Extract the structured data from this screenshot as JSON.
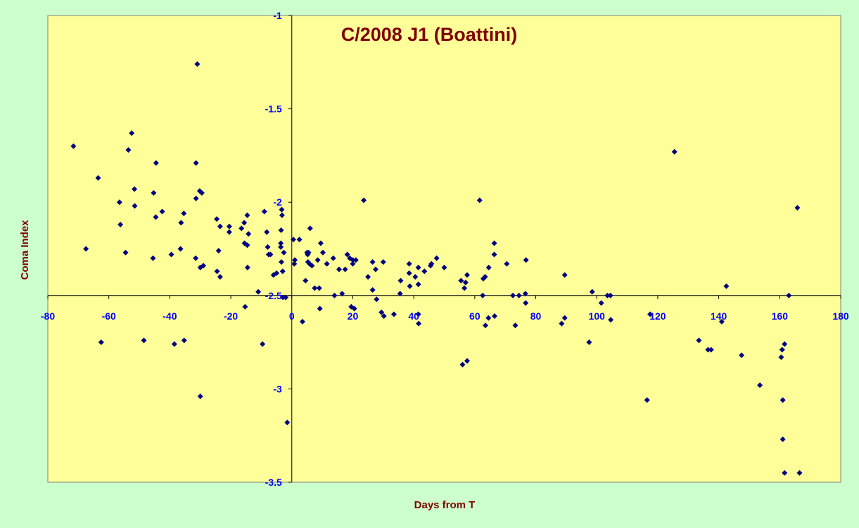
{
  "chart_data": {
    "type": "scatter",
    "title": "C/2008 J1 (Boattini)",
    "xlabel": "Days from T",
    "ylabel": "Coma Index",
    "xlim": [
      -80,
      180
    ],
    "ylim": [
      -3.5,
      -1
    ],
    "y_reversed": false,
    "grid": false,
    "legend": "none",
    "x_ticks": [
      -80,
      -60,
      -40,
      -20,
      0,
      20,
      40,
      60,
      80,
      100,
      120,
      140,
      160,
      180
    ],
    "y_ticks": [
      -1,
      -1.5,
      -2,
      -2.5,
      -3,
      -3.5
    ],
    "x_tick_labels": [
      "-80",
      "-60",
      "-40",
      "-20",
      "0",
      "20",
      "40",
      "60",
      "80",
      "100",
      "120",
      "140",
      "160",
      "180"
    ],
    "y_tick_labels": [
      "-1",
      "-1.5",
      "-2",
      "-2.5",
      "-3",
      "-3.5"
    ],
    "colors": {
      "background": "#ccffcc",
      "plot_area": "#ffff99",
      "marker": "#000080",
      "tick_labels": "#0000ff",
      "titles": "#800000"
    },
    "series": [
      {
        "marker": "diamond",
        "points": [
          [
            -71.6,
            -1.7
          ],
          [
            -67.5,
            -2.25
          ],
          [
            -63.5,
            -1.87
          ],
          [
            -62.5,
            -2.75
          ],
          [
            -56.5,
            -2.0
          ],
          [
            -56.2,
            -2.12
          ],
          [
            -54.5,
            -2.27
          ],
          [
            -53.6,
            -1.72
          ],
          [
            -52.5,
            -1.63
          ],
          [
            -51.6,
            -1.93
          ],
          [
            -51.5,
            -2.02
          ],
          [
            -48.5,
            -2.74
          ],
          [
            -45.5,
            -2.3
          ],
          [
            -45.3,
            -1.95
          ],
          [
            -44.6,
            -2.08
          ],
          [
            -44.5,
            -1.79
          ],
          [
            -42.5,
            -2.05
          ],
          [
            -39.5,
            -2.28
          ],
          [
            -38.5,
            -2.76
          ],
          [
            -36.5,
            -2.25
          ],
          [
            -36.3,
            -2.11
          ],
          [
            -35.4,
            -2.06
          ],
          [
            -35.3,
            -2.74
          ],
          [
            -31.5,
            -2.3
          ],
          [
            -31.4,
            -1.98
          ],
          [
            -31.4,
            -1.79
          ],
          [
            -31.0,
            -1.26
          ],
          [
            -30.2,
            -1.94
          ],
          [
            -30.0,
            -2.35
          ],
          [
            -30.0,
            -3.04
          ],
          [
            -29.5,
            -1.95
          ],
          [
            -29.0,
            -2.34
          ],
          [
            -24.6,
            -2.09
          ],
          [
            -24.5,
            -2.37
          ],
          [
            -24.0,
            -2.26
          ],
          [
            -23.5,
            -2.13
          ],
          [
            -23.5,
            -2.4
          ],
          [
            -20.5,
            -2.13
          ],
          [
            -20.5,
            -2.16
          ],
          [
            -16.5,
            -2.14
          ],
          [
            -15.6,
            -2.11
          ],
          [
            -15.5,
            -2.22
          ],
          [
            -15.3,
            -2.56
          ],
          [
            -14.6,
            -2.23
          ],
          [
            -14.6,
            -2.07
          ],
          [
            -14.5,
            -2.35
          ],
          [
            -14.2,
            -2.17
          ],
          [
            -11.0,
            -2.48
          ],
          [
            -9.6,
            -2.76
          ],
          [
            -9.0,
            -2.05
          ],
          [
            -8.2,
            -2.16
          ],
          [
            -7.9,
            -2.24
          ],
          [
            -7.6,
            -2.28
          ],
          [
            -7.0,
            -2.28
          ],
          [
            -6.0,
            -2.39
          ],
          [
            -5.0,
            -2.38
          ],
          [
            -3.6,
            -2.22
          ],
          [
            -3.6,
            -2.24
          ],
          [
            -3.4,
            -2.32
          ],
          [
            -3.5,
            -2.15
          ],
          [
            -3.3,
            -2.04
          ],
          [
            -3.2,
            -2.07
          ],
          [
            -3.0,
            -2.37
          ],
          [
            -2.9,
            -2.51
          ],
          [
            -2.6,
            -2.27
          ],
          [
            -2.0,
            -2.51
          ],
          [
            -1.5,
            -3.18
          ],
          [
            0.5,
            -2.2
          ],
          [
            0.8,
            -2.33
          ],
          [
            1.0,
            -2.31
          ],
          [
            2.5,
            -2.2
          ],
          [
            3.5,
            -2.64
          ],
          [
            4.5,
            -2.42
          ],
          [
            5.0,
            -2.27
          ],
          [
            5.2,
            -2.28
          ],
          [
            5.3,
            -2.32
          ],
          [
            5.5,
            -2.27
          ],
          [
            5.8,
            -2.33
          ],
          [
            6.0,
            -2.14
          ],
          [
            6.6,
            -2.34
          ],
          [
            7.5,
            -2.46
          ],
          [
            8.5,
            -2.31
          ],
          [
            9.0,
            -2.46
          ],
          [
            9.2,
            -2.57
          ],
          [
            9.5,
            -2.22
          ],
          [
            10.2,
            -2.27
          ],
          [
            11.5,
            -2.33
          ],
          [
            13.6,
            -2.3
          ],
          [
            14.0,
            -2.5
          ],
          [
            15.5,
            -2.36
          ],
          [
            16.5,
            -2.49
          ],
          [
            17.5,
            -2.36
          ],
          [
            18.2,
            -2.28
          ],
          [
            19.0,
            -2.3
          ],
          [
            19.5,
            -2.56
          ],
          [
            20.0,
            -2.31
          ],
          [
            20.0,
            -2.33
          ],
          [
            20.5,
            -2.57
          ],
          [
            21.0,
            -2.31
          ],
          [
            23.6,
            -1.99
          ],
          [
            25.0,
            -2.4
          ],
          [
            26.5,
            -2.32
          ],
          [
            26.5,
            -2.47
          ],
          [
            27.5,
            -2.36
          ],
          [
            27.8,
            -2.52
          ],
          [
            29.4,
            -2.59
          ],
          [
            30.0,
            -2.32
          ],
          [
            30.2,
            -2.61
          ],
          [
            33.5,
            -2.6
          ],
          [
            35.5,
            -2.49
          ],
          [
            35.7,
            -2.42
          ],
          [
            38.5,
            -2.33
          ],
          [
            38.5,
            -2.38
          ],
          [
            38.7,
            -2.45
          ],
          [
            40.5,
            -2.4
          ],
          [
            41.5,
            -2.35
          ],
          [
            41.5,
            -2.6
          ],
          [
            41.6,
            -2.65
          ],
          [
            41.5,
            -2.44
          ],
          [
            43.5,
            -2.37
          ],
          [
            45.5,
            -2.34
          ],
          [
            45.8,
            -2.33
          ],
          [
            47.5,
            -2.3
          ],
          [
            50.0,
            -2.35
          ],
          [
            55.5,
            -2.42
          ],
          [
            56.0,
            -2.87
          ],
          [
            56.6,
            -2.46
          ],
          [
            57.0,
            -2.43
          ],
          [
            57.5,
            -2.85
          ],
          [
            57.5,
            -2.39
          ],
          [
            61.6,
            -1.99
          ],
          [
            62.6,
            -2.5
          ],
          [
            62.8,
            -2.41
          ],
          [
            63.4,
            -2.4
          ],
          [
            63.5,
            -2.66
          ],
          [
            64.5,
            -2.62
          ],
          [
            64.6,
            -2.35
          ],
          [
            66.4,
            -2.28
          ],
          [
            66.4,
            -2.22
          ],
          [
            66.5,
            -2.61
          ],
          [
            70.5,
            -2.33
          ],
          [
            72.5,
            -2.5
          ],
          [
            73.3,
            -2.66
          ],
          [
            74.5,
            -2.5
          ],
          [
            76.6,
            -2.49
          ],
          [
            76.7,
            -2.54
          ],
          [
            76.8,
            -2.31
          ],
          [
            88.5,
            -2.65
          ],
          [
            89.5,
            -2.39
          ],
          [
            89.5,
            -2.62
          ],
          [
            97.5,
            -2.75
          ],
          [
            98.5,
            -2.48
          ],
          [
            101.5,
            -2.54
          ],
          [
            103.5,
            -2.5
          ],
          [
            104.5,
            -2.5
          ],
          [
            104.6,
            -2.63
          ],
          [
            116.5,
            -3.06
          ],
          [
            117.5,
            -2.6
          ],
          [
            125.5,
            -1.73
          ],
          [
            133.5,
            -2.74
          ],
          [
            136.5,
            -2.79
          ],
          [
            137.5,
            -2.79
          ],
          [
            141.0,
            -2.64
          ],
          [
            142.5,
            -2.45
          ],
          [
            147.5,
            -2.82
          ],
          [
            153.5,
            -2.98
          ],
          [
            160.5,
            -2.83
          ],
          [
            160.8,
            -2.79
          ],
          [
            161.0,
            -3.06
          ],
          [
            161.0,
            -3.27
          ],
          [
            161.6,
            -2.76
          ],
          [
            161.6,
            -3.45
          ],
          [
            163.0,
            -2.5
          ],
          [
            165.8,
            -2.03
          ],
          [
            166.5,
            -3.45
          ]
        ]
      }
    ]
  }
}
